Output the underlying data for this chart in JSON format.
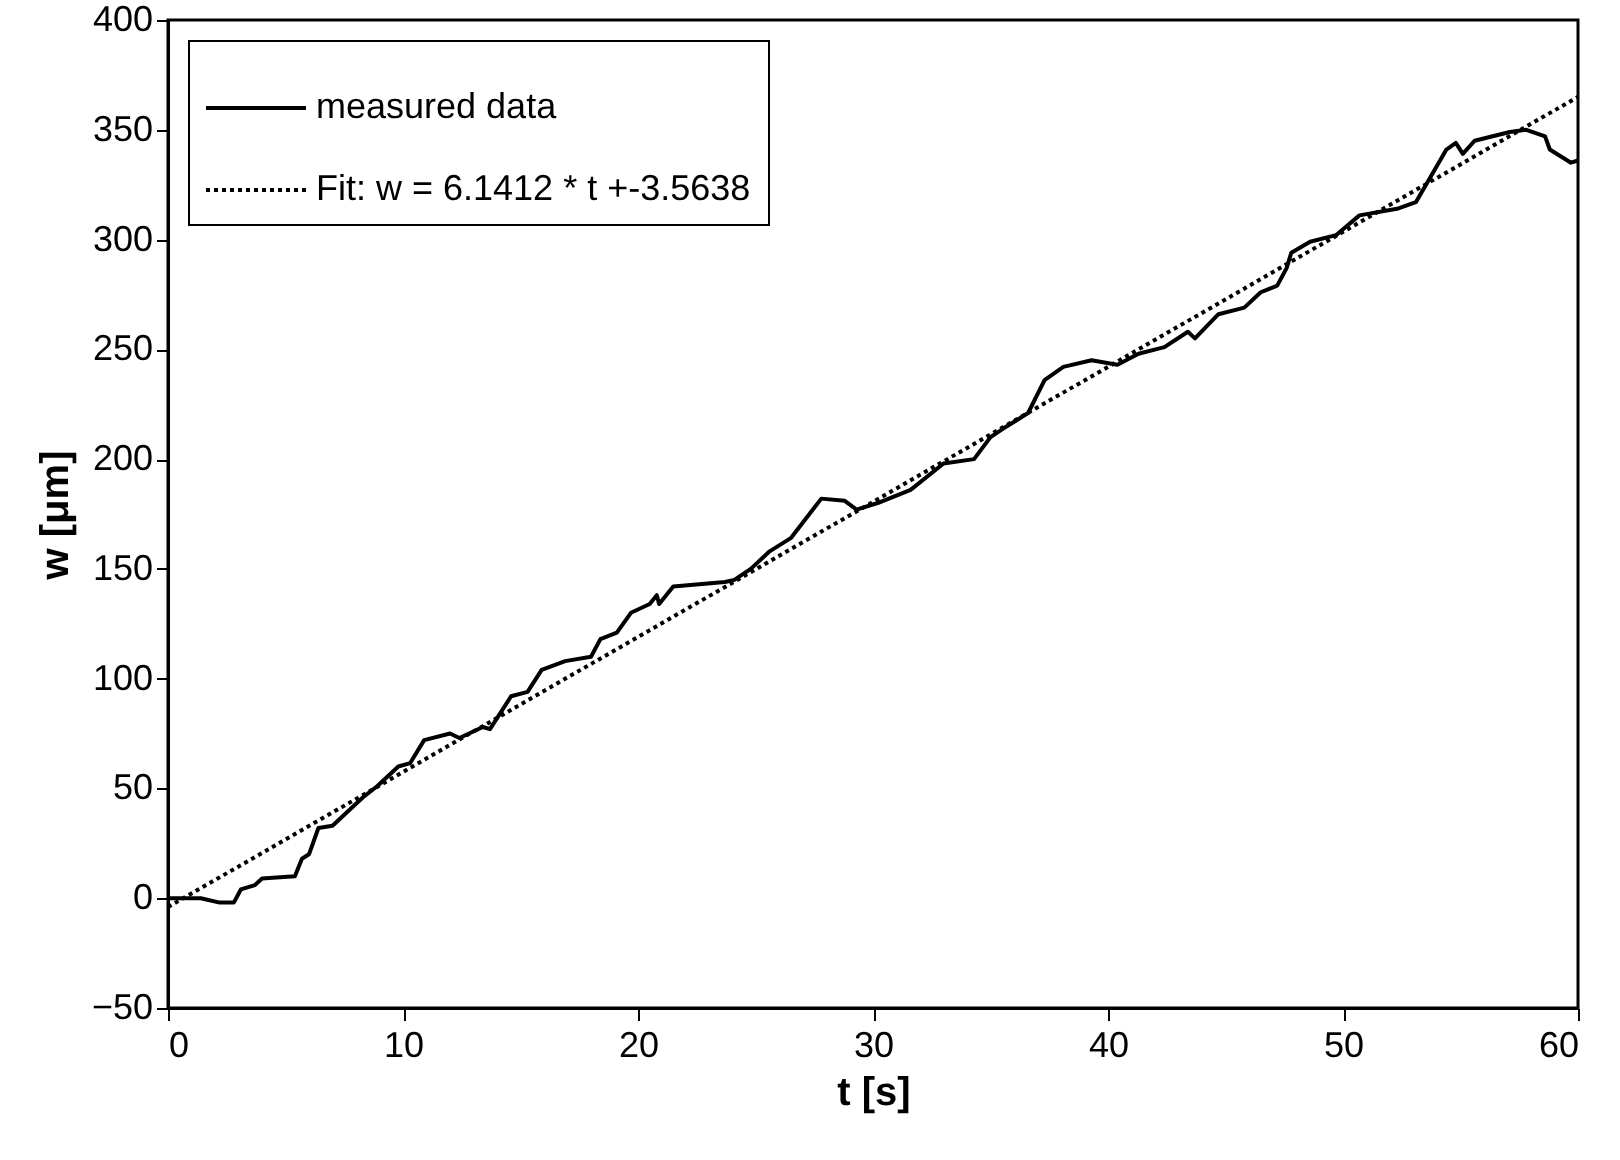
{
  "chart_data": {
    "type": "line",
    "xlabel": "t [s]",
    "ylabel": "w [μm]",
    "xlim": [
      0,
      60
    ],
    "xticks": [
      0,
      10,
      20,
      30,
      40,
      50,
      60
    ],
    "ylim": [
      -50,
      400
    ],
    "yticks": [
      -50,
      0,
      50,
      100,
      150,
      200,
      250,
      300,
      350,
      400
    ],
    "grid": false,
    "legend": "top left",
    "series": [
      {
        "name": "measured data",
        "color": "#000000",
        "line_style": "solid",
        "x": [
          0,
          1.4,
          2.2,
          2.8,
          3.1,
          3.7,
          4.0,
          5.4,
          5.7,
          6.0,
          6.4,
          7.0,
          7.5,
          8.3,
          8.9,
          9.8,
          10.3,
          10.9,
          12.0,
          12.4,
          13.4,
          13.7,
          14.6,
          15.3,
          15.9,
          16.9,
          18.0,
          18.4,
          19.1,
          19.7,
          20.5,
          20.8,
          20.9,
          21.5,
          23.7,
          24.1,
          24.8,
          25.6,
          26.5,
          27.8,
          28.8,
          29.3,
          30.2,
          31.6,
          33.0,
          34.3,
          35.0,
          35.7,
          36.6,
          37.3,
          38.1,
          39.3,
          40.4,
          41.3,
          42.4,
          43.4,
          43.7,
          44.7,
          45.8,
          46.5,
          47.2,
          47.6,
          47.8,
          48.6,
          49.7,
          50.7,
          52.3,
          53.1,
          53.7,
          54.4,
          54.8,
          55.1,
          55.6,
          57.1,
          57.8,
          58.6,
          58.8,
          59.7,
          60
        ],
        "values": [
          0,
          0,
          -2,
          -2,
          4,
          6,
          9,
          10,
          18,
          20,
          32,
          33,
          38,
          46,
          51,
          60,
          61.5,
          72,
          75,
          73,
          78,
          77,
          92,
          94,
          104,
          108,
          110,
          118,
          121,
          130,
          134,
          138,
          134,
          142,
          144,
          145,
          150,
          158,
          164,
          182,
          181,
          177,
          180,
          186,
          198,
          200,
          210,
          215,
          221,
          236,
          242,
          245,
          243,
          248,
          251,
          258,
          255,
          266,
          269,
          276,
          279,
          287,
          294,
          299,
          302,
          311,
          314,
          317,
          328,
          341,
          344,
          339,
          345,
          349,
          350,
          347,
          341,
          335,
          336
        ]
      },
      {
        "name": "Fit: w = 6.1412 * t +-3.5638",
        "color": "#000000",
        "line_style": "dotted",
        "x": [
          0,
          60
        ],
        "values": [
          -4,
          365
        ]
      }
    ]
  }
}
